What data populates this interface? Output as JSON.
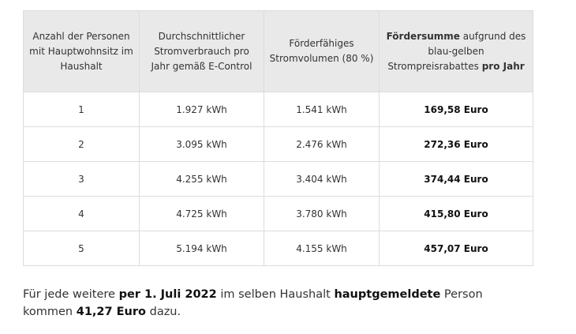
{
  "table": {
    "headers": {
      "persons": "Anzahl der Personen mit Hauptwohnsitz im Haushalt",
      "consumption": "Durchschnittlicher Stromverbrauch pro Jahr gemäß E-Control",
      "volume": "Förderfähiges Stromvolumen (80 %)",
      "subsidy": {
        "bold1": "Fördersumme",
        "mid": " aufgrund des blau-gelben Strompreisrabattes ",
        "bold2": "pro Jahr"
      }
    },
    "rows": [
      {
        "persons": "1",
        "consumption": "1.927 kWh",
        "volume": "1.541 kWh",
        "subsidy": "169,58 Euro"
      },
      {
        "persons": "2",
        "consumption": "3.095 kWh",
        "volume": "2.476 kWh",
        "subsidy": "272,36 Euro"
      },
      {
        "persons": "3",
        "consumption": "4.255 kWh",
        "volume": "3.404 kWh",
        "subsidy": "374,44 Euro"
      },
      {
        "persons": "4",
        "consumption": "4.725 kWh",
        "volume": "3.780 kWh",
        "subsidy": "415,80 Euro"
      },
      {
        "persons": "5",
        "consumption": "5.194 kWh",
        "volume": "4.155 kWh",
        "subsidy": "457,07 Euro"
      }
    ]
  },
  "note": {
    "t1": "Für jede weitere ",
    "b1": "per 1. Juli 2022",
    "t2": " im selben Haushalt ",
    "b2": "hauptgemeldete",
    "t3": " Person kommen ",
    "b3": "41,27 Euro",
    "t4": " dazu."
  }
}
